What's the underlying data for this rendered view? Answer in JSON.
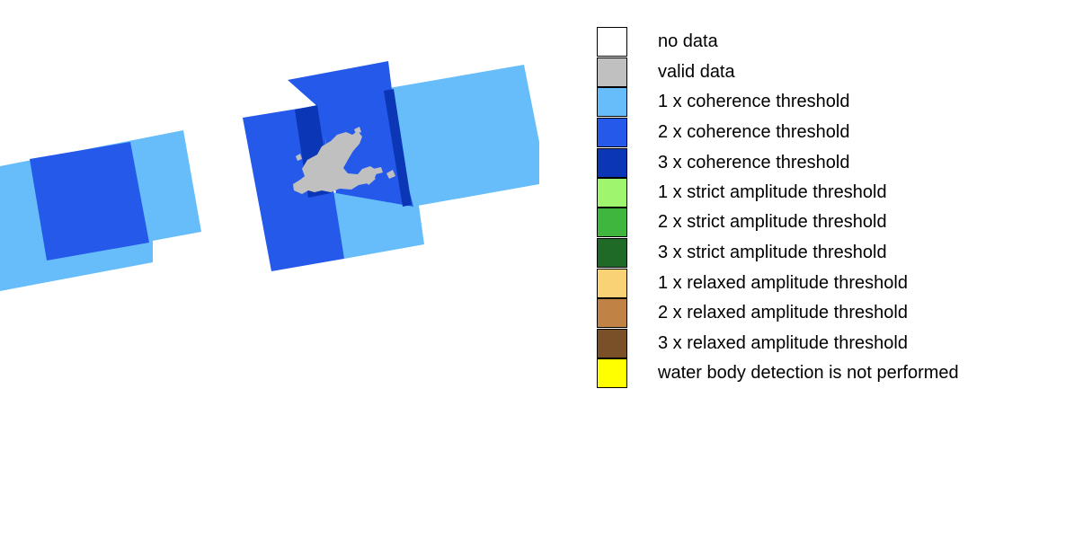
{
  "map": {
    "coverage_classes": {
      "one_x_coherence_color": "#66bdfa",
      "two_x_coherence_color": "#2459ea",
      "three_x_coherence_color": "#0b36b5",
      "valid_data_color": "#c0c0c0"
    }
  },
  "legend": {
    "items": [
      {
        "label": "no data",
        "color": "#ffffff"
      },
      {
        "label": "valid data",
        "color": "#c0c0c0"
      },
      {
        "label": "1 x coherence threshold",
        "color": "#66bdfa"
      },
      {
        "label": "2 x coherence threshold",
        "color": "#2459ea"
      },
      {
        "label": "3 x coherence threshold",
        "color": "#0b36b5"
      },
      {
        "label": "1 x strict amplitude threshold",
        "color": "#a0f56e"
      },
      {
        "label": "2 x strict amplitude threshold",
        "color": "#3fb73f"
      },
      {
        "label": "3 x strict amplitude threshold",
        "color": "#1f6a26"
      },
      {
        "label": "1 x relaxed amplitude threshold",
        "color": "#f8d275"
      },
      {
        "label": "2 x relaxed amplitude threshold",
        "color": "#c18345"
      },
      {
        "label": "3 x relaxed amplitude threshold",
        "color": "#7a5029"
      },
      {
        "label": "water body detection is not performed",
        "color": "#ffff00"
      }
    ]
  }
}
